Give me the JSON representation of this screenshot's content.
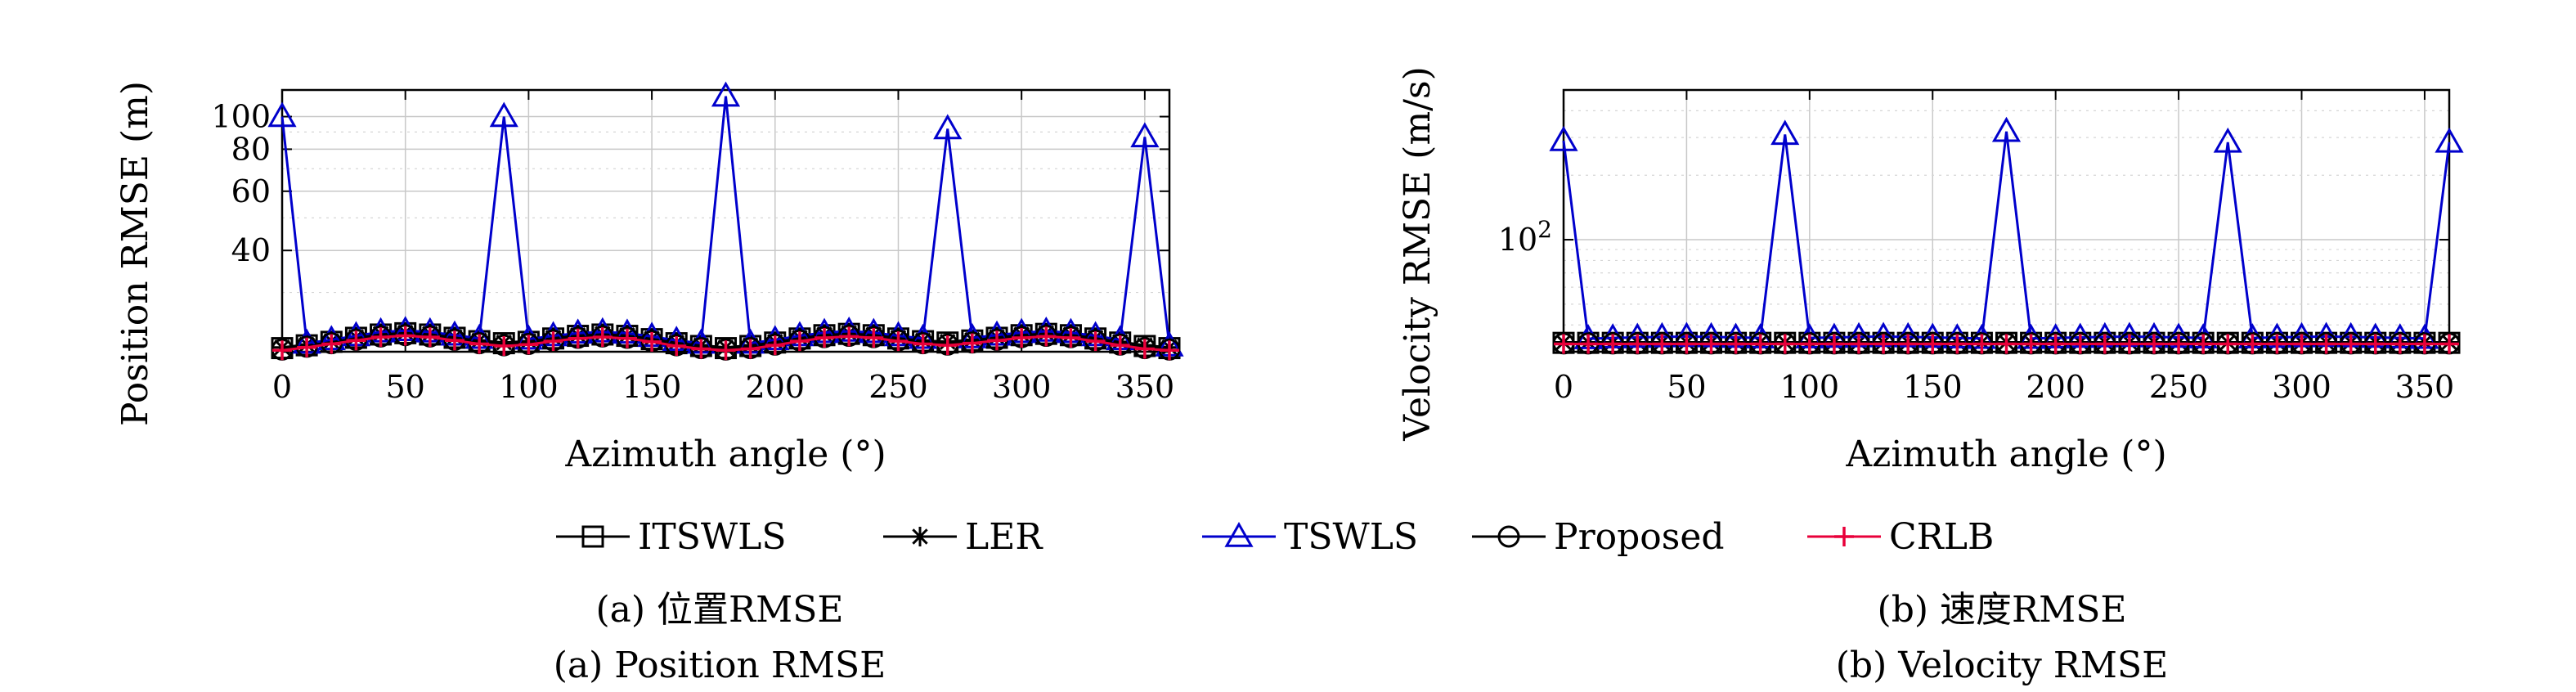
{
  "legend": [
    {
      "name": "ITSWLS",
      "color": "#000000",
      "marker": "square"
    },
    {
      "name": "LER",
      "color": "#000000",
      "marker": "asterisk"
    },
    {
      "name": "TSWLS",
      "color": "#0000cc",
      "marker": "triangle"
    },
    {
      "name": "Proposed",
      "color": "#000000",
      "marker": "circle"
    },
    {
      "name": "CRLB",
      "color": "#e8003a",
      "marker": "plus"
    }
  ],
  "captions": {
    "a_cn": "(a) 位置RMSE",
    "a_en": "(a) Position RMSE",
    "b_cn": "(b) 速度RMSE",
    "b_en": "(b) Velocity RMSE"
  },
  "chart_data": [
    {
      "type": "line",
      "xlabel": "Azimuth angle (°)",
      "ylabel": "Position RMSE (m)",
      "yscale": "log",
      "xlim": [
        0,
        360
      ],
      "ylim": [
        20,
        120
      ],
      "xticks": [
        0,
        50,
        100,
        150,
        200,
        250,
        300,
        350
      ],
      "yticks": [
        40,
        60,
        80,
        100
      ],
      "ytick_labels": [
        "40",
        "60",
        "80",
        "100"
      ],
      "grid": true,
      "x": [
        0,
        10,
        20,
        30,
        40,
        50,
        60,
        70,
        80,
        90,
        100,
        110,
        120,
        130,
        140,
        150,
        160,
        170,
        180,
        190,
        200,
        210,
        220,
        230,
        240,
        250,
        260,
        270,
        280,
        290,
        300,
        310,
        320,
        330,
        340,
        350,
        360
      ],
      "series": [
        {
          "name": "ITSWLS",
          "values": [
            20.5,
            20.9,
            21.4,
            22.0,
            22.5,
            22.7,
            22.5,
            22.0,
            21.5,
            21.2,
            21.4,
            21.9,
            22.3,
            22.5,
            22.3,
            21.8,
            21.2,
            20.8,
            20.5,
            20.8,
            21.3,
            21.9,
            22.4,
            22.6,
            22.4,
            21.9,
            21.5,
            21.3,
            21.6,
            22.0,
            22.4,
            22.6,
            22.4,
            21.9,
            21.3,
            20.8,
            20.5
          ]
        },
        {
          "name": "LER",
          "values": [
            20.6,
            21.0,
            21.5,
            22.1,
            22.6,
            22.8,
            22.6,
            22.1,
            21.6,
            21.3,
            21.5,
            22.0,
            22.4,
            22.6,
            22.4,
            21.9,
            21.3,
            20.9,
            20.6,
            20.9,
            21.4,
            22.0,
            22.5,
            22.7,
            22.5,
            22.0,
            21.6,
            21.4,
            21.7,
            22.1,
            22.5,
            22.7,
            22.5,
            22.0,
            21.4,
            20.9,
            20.6
          ]
        },
        {
          "name": "TSWLS",
          "values": [
            100,
            21.2,
            21.7,
            22.3,
            22.9,
            23.1,
            22.9,
            22.4,
            21.9,
            100,
            21.8,
            22.3,
            22.7,
            22.9,
            22.7,
            22.2,
            21.6,
            21.2,
            115,
            21.2,
            21.7,
            22.3,
            22.8,
            23.0,
            22.8,
            22.3,
            21.9,
            92,
            22.0,
            22.4,
            22.8,
            23.0,
            22.8,
            22.3,
            21.7,
            87,
            20.8
          ]
        },
        {
          "name": "Proposed",
          "values": [
            20.3,
            20.7,
            21.2,
            21.7,
            22.2,
            22.4,
            22.2,
            21.7,
            21.2,
            20.9,
            21.1,
            21.6,
            22.0,
            22.2,
            22.0,
            21.5,
            20.9,
            20.5,
            20.3,
            20.5,
            21.0,
            21.6,
            22.1,
            22.3,
            22.1,
            21.6,
            21.2,
            21.0,
            21.3,
            21.7,
            22.1,
            22.3,
            22.1,
            21.6,
            21.0,
            20.5,
            20.3
          ]
        },
        {
          "name": "CRLB",
          "values": [
            20.2,
            20.6,
            21.1,
            21.6,
            22.1,
            22.3,
            22.1,
            21.6,
            21.1,
            20.8,
            21.0,
            21.5,
            21.9,
            22.1,
            21.9,
            21.4,
            20.8,
            20.4,
            20.2,
            20.4,
            20.9,
            21.5,
            22.0,
            22.2,
            22.0,
            21.5,
            21.1,
            20.9,
            21.2,
            21.6,
            22.0,
            22.2,
            22.0,
            21.5,
            20.9,
            20.4,
            20.2
          ]
        }
      ]
    },
    {
      "type": "line",
      "xlabel": "Azimuth angle (°)",
      "ylabel": "Velocity RMSE (m/s)",
      "yscale": "log",
      "xlim": [
        0,
        360
      ],
      "ylim": [
        30,
        500
      ],
      "xticks": [
        0,
        50,
        100,
        150,
        200,
        250,
        300,
        350
      ],
      "yticks": [
        100
      ],
      "ytick_labels": [
        "10²"
      ],
      "grid": true,
      "x": [
        0,
        10,
        20,
        30,
        40,
        50,
        60,
        70,
        80,
        90,
        100,
        110,
        120,
        130,
        140,
        150,
        160,
        170,
        180,
        190,
        200,
        210,
        220,
        230,
        240,
        250,
        260,
        270,
        280,
        290,
        300,
        310,
        320,
        330,
        340,
        350,
        360
      ],
      "series": [
        {
          "name": "ITSWLS",
          "values": [
            33,
            33,
            33,
            33,
            33,
            33,
            33,
            33,
            33,
            33,
            33,
            33,
            33,
            33,
            33,
            33,
            33,
            33,
            33,
            33,
            33,
            33,
            33,
            33,
            33,
            33,
            33,
            33,
            33,
            33,
            33,
            33,
            33,
            33,
            33,
            33,
            33
          ]
        },
        {
          "name": "LER",
          "values": [
            33.2,
            33.2,
            33.2,
            33.2,
            33.2,
            33.2,
            33.2,
            33.2,
            33.2,
            33.2,
            33.2,
            33.2,
            33.2,
            33.2,
            33.2,
            33.2,
            33.2,
            33.2,
            33.2,
            33.2,
            33.2,
            33.2,
            33.2,
            33.2,
            33.2,
            33.2,
            33.2,
            33.2,
            33.2,
            33.2,
            33.2,
            33.2,
            33.2,
            33.2,
            33.2,
            33.2,
            33.2
          ]
        },
        {
          "name": "TSWLS",
          "values": [
            290,
            34.5,
            34.8,
            35.0,
            35.2,
            35.3,
            35.2,
            35.0,
            34.8,
            310,
            34.8,
            35.0,
            35.2,
            35.3,
            35.2,
            35.0,
            34.8,
            34.6,
            320,
            34.6,
            34.8,
            35.0,
            35.2,
            35.3,
            35.2,
            35.0,
            34.8,
            285,
            34.8,
            35.0,
            35.2,
            35.3,
            35.2,
            35.0,
            34.8,
            34.6,
            285
          ]
        },
        {
          "name": "Proposed",
          "values": [
            32.8,
            32.8,
            32.8,
            32.8,
            32.8,
            32.8,
            32.8,
            32.8,
            32.8,
            32.8,
            32.8,
            32.8,
            32.8,
            32.8,
            32.8,
            32.8,
            32.8,
            32.8,
            32.8,
            32.8,
            32.8,
            32.8,
            32.8,
            32.8,
            32.8,
            32.8,
            32.8,
            32.8,
            32.8,
            32.8,
            32.8,
            32.8,
            32.8,
            32.8,
            32.8,
            32.8,
            32.8
          ]
        },
        {
          "name": "CRLB",
          "values": [
            32.6,
            32.6,
            32.6,
            32.6,
            32.6,
            32.6,
            32.6,
            32.6,
            32.6,
            32.6,
            32.6,
            32.6,
            32.6,
            32.6,
            32.6,
            32.6,
            32.6,
            32.6,
            32.6,
            32.6,
            32.6,
            32.6,
            32.6,
            32.6,
            32.6,
            32.6,
            32.6,
            32.6,
            32.6,
            32.6,
            32.6,
            32.6,
            32.6,
            32.6,
            32.6,
            32.6,
            32.6
          ]
        }
      ]
    }
  ]
}
